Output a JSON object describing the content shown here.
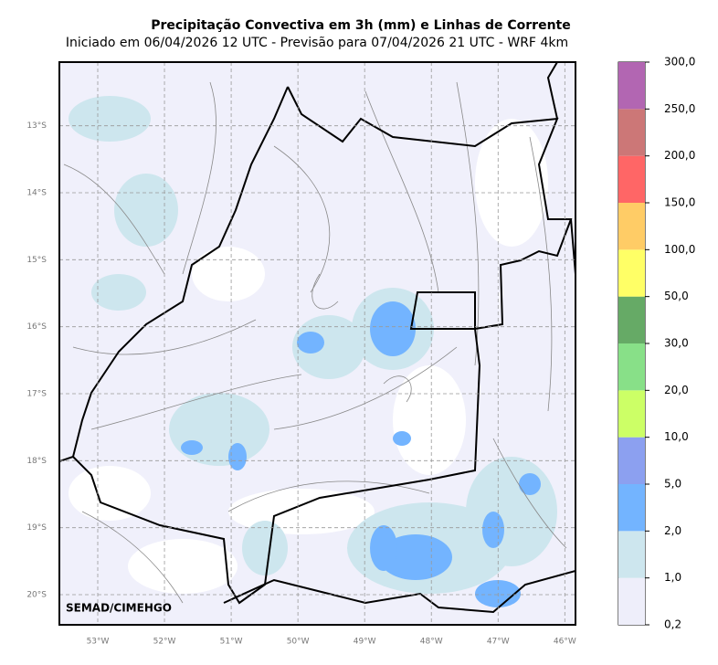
{
  "title": "Precipitação Convectiva em 3h (mm) e Linhas de Corrente",
  "subtitle": "Iniciado em 06/04/2026 12 UTC - Previsão para 07/04/2026 21 UTC - WRF 4km",
  "credit": "SEMAD/CIMEHGO",
  "map": {
    "lonlim": [
      -53.575,
      -45.84
    ],
    "latlim": [
      -20.45,
      -12.05
    ],
    "grid": true,
    "lat_ticks": [
      {
        "value": -13,
        "label": "13°S"
      },
      {
        "value": -14,
        "label": "14°S"
      },
      {
        "value": -15,
        "label": "15°S"
      },
      {
        "value": -16,
        "label": "16°S"
      },
      {
        "value": -17,
        "label": "17°S"
      },
      {
        "value": -18,
        "label": "18°S"
      },
      {
        "value": -19,
        "label": "19°S"
      },
      {
        "value": -20,
        "label": "20°S"
      }
    ],
    "lon_ticks": [
      {
        "value": -53,
        "label": "53°W"
      },
      {
        "value": -52,
        "label": "52°W"
      },
      {
        "value": -51,
        "label": "51°W"
      },
      {
        "value": -50,
        "label": "50°W"
      },
      {
        "value": -49,
        "label": "49°W"
      },
      {
        "value": -48,
        "label": "48°W"
      },
      {
        "value": -47,
        "label": "47°W"
      },
      {
        "value": -46,
        "label": "46°W"
      }
    ]
  },
  "colorbar": {
    "levels": [
      {
        "value": 0.2,
        "label": "0,2"
      },
      {
        "value": 1,
        "label": "1,0"
      },
      {
        "value": 2,
        "label": "2,0"
      },
      {
        "value": 5,
        "label": "5,0"
      },
      {
        "value": 10,
        "label": "10,0"
      },
      {
        "value": 20,
        "label": "20,0"
      },
      {
        "value": 30,
        "label": "30,0"
      },
      {
        "value": 50,
        "label": "50,0"
      },
      {
        "value": 100,
        "label": "100,0"
      },
      {
        "value": 150,
        "label": "150,0"
      },
      {
        "value": 200,
        "label": "200,0"
      },
      {
        "value": 250,
        "label": "250,0"
      },
      {
        "value": 300,
        "label": "300,0"
      }
    ],
    "colors": [
      "#eeeefa",
      "#cde6ee",
      "#73b4ff",
      "#8ca0f0",
      "#ccff66",
      "#88e088",
      "#66aa66",
      "#ffff66",
      "#ffcc66",
      "#ff6666",
      "#cc7777",
      "#b266b2"
    ]
  }
}
